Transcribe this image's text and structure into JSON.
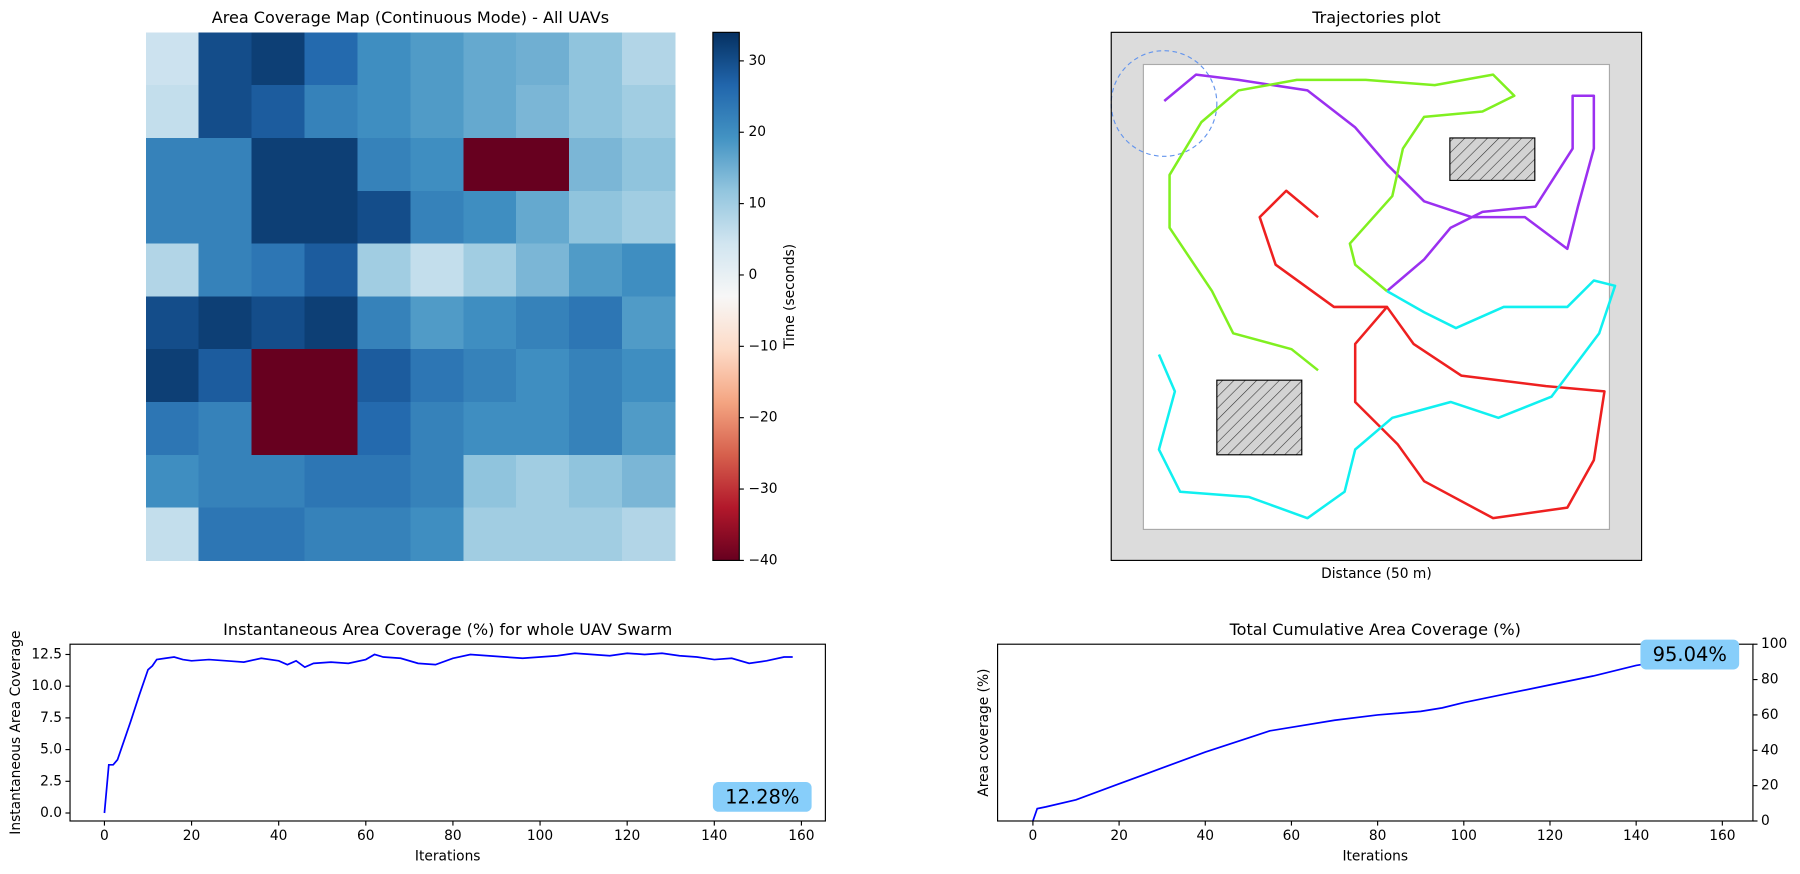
{
  "chart_data": [
    {
      "type": "heatmap",
      "title": "Area Coverage Map (Continuous Mode) - All UAVs",
      "colormap": "RdBu",
      "colorbar_label": "Time (seconds)",
      "clim": [
        -40,
        34
      ],
      "cticks": [
        30,
        20,
        10,
        0,
        {
          "value": -10,
          "label": "−10"
        },
        {
          "value": -20,
          "label": "−20"
        },
        {
          "value": -30,
          "label": "−30"
        },
        {
          "value": -40,
          "label": "−40"
        }
      ],
      "z": [
        [
          5,
          30,
          32,
          26,
          20,
          18,
          16,
          15,
          12,
          8
        ],
        [
          6,
          30,
          28,
          22,
          20,
          18,
          16,
          14,
          12,
          10
        ],
        [
          22,
          22,
          32,
          32,
          22,
          20,
          -40,
          -40,
          14,
          12
        ],
        [
          22,
          22,
          32,
          32,
          30,
          22,
          20,
          16,
          12,
          10
        ],
        [
          8,
          22,
          24,
          28,
          10,
          6,
          10,
          14,
          18,
          20
        ],
        [
          30,
          32,
          30,
          32,
          22,
          18,
          20,
          22,
          24,
          18
        ],
        [
          32,
          28,
          -40,
          -40,
          28,
          24,
          22,
          20,
          22,
          20
        ],
        [
          24,
          22,
          -40,
          -40,
          26,
          22,
          20,
          20,
          22,
          18
        ],
        [
          20,
          22,
          22,
          24,
          24,
          22,
          12,
          10,
          12,
          14
        ],
        [
          6,
          24,
          24,
          22,
          22,
          20,
          10,
          10,
          10,
          8
        ]
      ]
    },
    {
      "type": "trajectory",
      "title": "Trajectories plot",
      "xlabel": "Distance  (50 m)",
      "xlim": [
        0,
        100
      ],
      "ylim": [
        0,
        100
      ],
      "series": [
        {
          "color": "#9b30f0",
          "x": [
            10,
            16,
            24,
            37,
            46,
            52,
            59,
            68,
            78,
            86,
            88,
            91,
            91,
            87,
            87,
            80,
            70,
            64,
            59,
            52
          ],
          "values": [
            87,
            92,
            91,
            89,
            82,
            75,
            68,
            65,
            65,
            59,
            67,
            78,
            88,
            88,
            78,
            67,
            66,
            63,
            57,
            51
          ]
        },
        {
          "color": "#80f020",
          "x": [
            39,
            34,
            23,
            19,
            11,
            11,
            17,
            24,
            35,
            48,
            61,
            72,
            76,
            70,
            59,
            55,
            53,
            45,
            46,
            52
          ],
          "values": [
            36,
            40,
            43,
            51,
            63,
            73,
            83,
            89,
            91,
            91,
            90,
            92,
            88,
            85,
            84,
            78,
            69,
            60,
            56,
            51
          ]
        },
        {
          "color": "#ee2020",
          "x": [
            39,
            33,
            28,
            31,
            42,
            52,
            46,
            46,
            54,
            59,
            72,
            86,
            91,
            93,
            82,
            66,
            57,
            52
          ],
          "values": [
            65,
            70,
            65,
            56,
            48,
            48,
            41,
            30,
            22,
            15,
            8,
            10,
            19,
            32,
            33,
            35,
            41,
            48
          ]
        },
        {
          "color": "#10f0f0",
          "x": [
            9,
            12,
            9,
            13,
            26,
            37,
            44,
            46,
            53,
            64,
            73,
            83,
            92,
            95,
            91,
            86,
            74,
            65,
            59,
            52
          ],
          "values": [
            39,
            32,
            21,
            13,
            12,
            8,
            13,
            21,
            27,
            30,
            27,
            31,
            43,
            52,
            53,
            48,
            48,
            44,
            47,
            51
          ]
        }
      ]
    },
    {
      "type": "line",
      "title": "Instantaneous Area Coverage (%) for whole UAV Swarm",
      "xlabel": "Iterations",
      "ylabel": "Instantaneous Area Coverage",
      "color": "#0000ff",
      "annotation": "12.28%",
      "annotation_corner": "lower right",
      "y_axis_side": "left",
      "xlim": [
        -7.9,
        165.5
      ],
      "ylim": [
        -0.63,
        13.31
      ],
      "xticks": [
        0,
        20,
        40,
        60,
        80,
        100,
        120,
        140,
        160
      ],
      "yticks": [
        {
          "value": 0,
          "label": "0.0"
        },
        2.5,
        {
          "value": 5,
          "label": "5.0"
        },
        7.5,
        {
          "value": 10,
          "label": "10.0"
        },
        12.5
      ],
      "x": [
        0,
        1,
        2,
        3,
        4,
        6,
        8,
        10,
        11,
        12,
        14,
        16,
        18,
        20,
        24,
        28,
        32,
        36,
        40,
        42,
        44,
        46,
        48,
        52,
        56,
        60,
        62,
        64,
        68,
        72,
        76,
        80,
        84,
        88,
        92,
        96,
        100,
        104,
        108,
        112,
        116,
        120,
        124,
        128,
        132,
        136,
        140,
        144,
        148,
        152,
        156,
        158
      ],
      "values": [
        0,
        3.8,
        3.8,
        4.2,
        5.2,
        7.2,
        9.3,
        11.3,
        11.6,
        12.1,
        12.2,
        12.3,
        12.1,
        12.0,
        12.1,
        12.0,
        11.9,
        12.2,
        12.0,
        11.7,
        12.0,
        11.5,
        11.8,
        11.9,
        11.8,
        12.1,
        12.5,
        12.3,
        12.2,
        11.8,
        11.7,
        12.2,
        12.5,
        12.4,
        12.3,
        12.2,
        12.3,
        12.4,
        12.6,
        12.5,
        12.4,
        12.6,
        12.5,
        12.6,
        12.4,
        12.3,
        12.1,
        12.2,
        11.8,
        12.0,
        12.3,
        12.3
      ]
    },
    {
      "type": "line",
      "title": "Total Cumulative Area Coverage (%)",
      "xlabel": "Iterations",
      "ylabel": "Area coverage (%)",
      "color": "#0000ff",
      "annotation": "95.04%",
      "annotation_corner": "upper right",
      "y_axis_side": "right",
      "xlim": [
        -8.2,
        167.1
      ],
      "ylim": [
        0,
        100
      ],
      "xticks": [
        0,
        20,
        40,
        60,
        80,
        100,
        120,
        140,
        160
      ],
      "yticks": [
        0,
        20,
        40,
        60,
        80,
        100
      ],
      "x": [
        0,
        1,
        3,
        10,
        20,
        30,
        40,
        50,
        55,
        60,
        70,
        80,
        90,
        95,
        100,
        110,
        120,
        130,
        140,
        150,
        158
      ],
      "values": [
        0,
        7,
        8,
        12,
        21,
        30,
        39,
        47,
        51,
        53,
        57,
        60,
        62,
        64,
        67,
        72,
        77,
        82,
        88,
        92,
        95
      ]
    }
  ]
}
